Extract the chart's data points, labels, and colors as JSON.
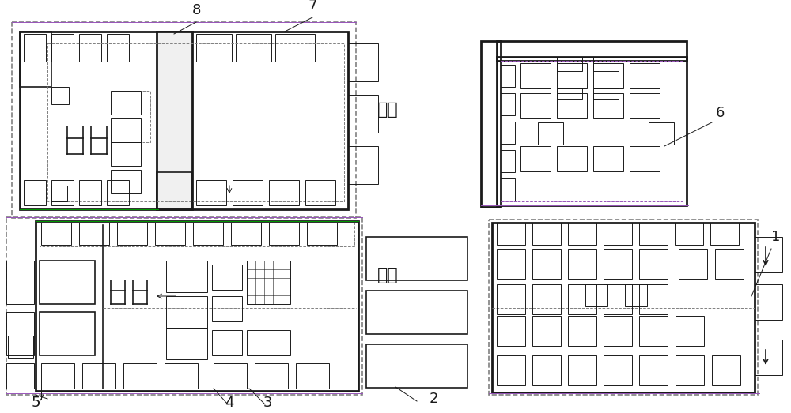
{
  "background": "#ffffff",
  "lc": "#1a1a1a",
  "dc": "#808080",
  "gc": "#009900",
  "pc": "#9955bb",
  "fig_width": 10.0,
  "fig_height": 5.23
}
